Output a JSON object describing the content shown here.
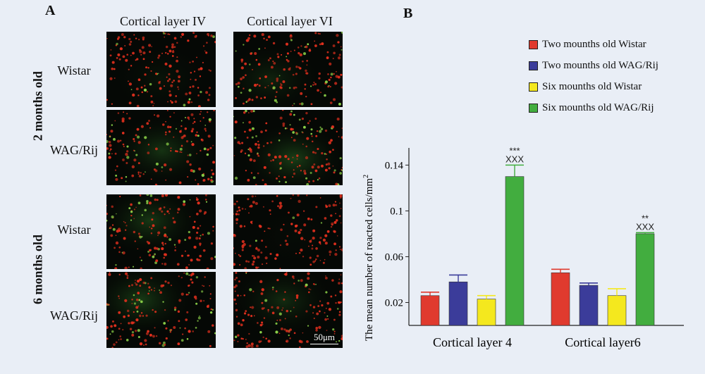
{
  "panel_a": {
    "letter": "A",
    "columns": [
      "Cortical layer IV",
      "Cortical layer VI"
    ],
    "groups": [
      {
        "label": "2 months old",
        "rows": [
          "Wistar",
          "WAG/Rij"
        ]
      },
      {
        "label": "6 months old",
        "rows": [
          "Wistar",
          "WAG/Rij"
        ]
      }
    ],
    "scale_bar": "50μm"
  },
  "panel_b": {
    "letter": "B"
  },
  "colors": {
    "red": "#e03a2e",
    "blue": "#3b3c9a",
    "yellow": "#f4e81e",
    "green": "#42ad3f"
  },
  "chart_data": {
    "type": "bar",
    "categories": [
      "Cortical layer 4",
      "Cortical layer6"
    ],
    "series": [
      {
        "name": "Two mounths old Wistar",
        "color": "#e03a2e",
        "values": [
          0.026,
          0.046
        ],
        "errors": [
          0.003,
          0.003
        ]
      },
      {
        "name": "Two mounths old WAG/Rij",
        "color": "#3b3c9a",
        "values": [
          0.038,
          0.035
        ],
        "errors": [
          0.006,
          0.002
        ]
      },
      {
        "name": "Six mounths old Wistar",
        "color": "#f4e81e",
        "values": [
          0.023,
          0.026
        ],
        "errors": [
          0.003,
          0.006
        ]
      },
      {
        "name": "Six mounths old WAG/Rij",
        "color": "#42ad3f",
        "values": [
          0.13,
          0.08
        ],
        "errors": [
          0.01,
          0.001
        ]
      }
    ],
    "annotations": [
      {
        "category": "Cortical layer 4",
        "series": 3,
        "lines": [
          "***",
          "XXX"
        ]
      },
      {
        "category": "Cortical layer6",
        "series": 3,
        "lines": [
          "**",
          "XXX"
        ]
      }
    ],
    "ylabel": "The mean number of reacted cells/mm",
    "ylabel_superscript": "2",
    "yticks": [
      0.02,
      0.06,
      0.1,
      0.14
    ],
    "ylim": [
      0.0,
      0.155
    ],
    "legend_position": "top-right"
  }
}
